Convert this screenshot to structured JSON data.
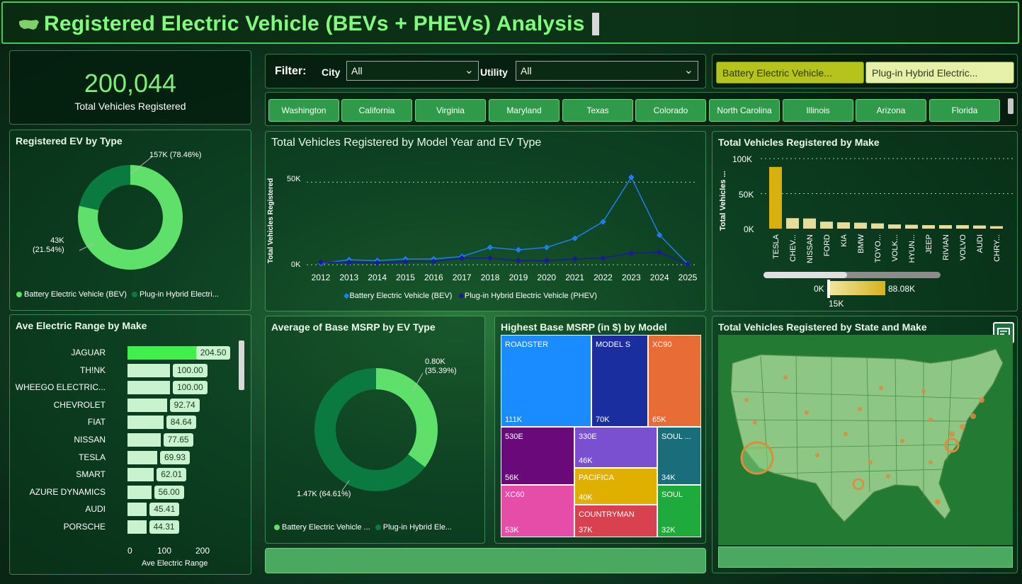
{
  "header": {
    "title": "Registered Electric Vehicle (BEVs + PHEVs) Analysis"
  },
  "kpi": {
    "value": "200,044",
    "label": "Total Vehicles Registered"
  },
  "filters": {
    "label": "Filter:",
    "city_label": "City",
    "city_value": "All",
    "utility_label": "Utility",
    "utility_value": "All"
  },
  "ev_type_buttons": [
    "Battery Electric Vehicle...",
    "Plug-in Hybrid Electric..."
  ],
  "states": [
    "Washington",
    "California",
    "Virginia",
    "Maryland",
    "Texas",
    "Colorado",
    "North Carolina",
    "Illinois",
    "Arizona",
    "Florida"
  ],
  "ev_by_type": {
    "title": "Registered EV by Type",
    "bev_label": "157K (78.46%)",
    "phev_label": "43K\n(21.54%)",
    "legend_bev": "Battery Electric Vehicle (BEV)",
    "legend_phev": "Plug-in Hybrid Electri..."
  },
  "range_by_make": {
    "title": "Ave Electric Range by Make",
    "xlabel": "Ave Electric Range",
    "xticks": [
      "0",
      "100",
      "200"
    ]
  },
  "msrp_by_type": {
    "title": "Average of Base MSRP by EV Type",
    "phev_label": "0.80K\n(35.39%)",
    "bev_label": "1.47K (64.61%)",
    "legend_bev": "Battery Electric Vehicle ...",
    "legend_phev": "Plug-in Hybrid Ele..."
  },
  "treemap": {
    "title": "Highest Base MSRP (in $) by Model",
    "cells": [
      {
        "name": "ROADSTER",
        "value": "111K",
        "color": "#1a8cff"
      },
      {
        "name": "MODEL S",
        "value": "70K",
        "color": "#1b2ea0"
      },
      {
        "name": "XC90",
        "value": "65K",
        "color": "#e86c35"
      },
      {
        "name": "530E",
        "value": "56K",
        "color": "#6a0a7a"
      },
      {
        "name": "330E",
        "value": "46K",
        "color": "#7a4fd0"
      },
      {
        "name": "SOUL ...",
        "value": "34K",
        "color": "#1a6d7a"
      },
      {
        "name": "XC60",
        "value": "53K",
        "color": "#e64da8"
      },
      {
        "name": "PACIFICA",
        "value": "40K",
        "color": "#e0b000"
      },
      {
        "name": "SOUL",
        "value": "32K",
        "color": "#1eaa3c"
      },
      {
        "name": "COUNTRYMAN",
        "value": "37K",
        "color": "#d94050"
      }
    ]
  },
  "map": {
    "title": "Total Vehicles Registered by State and Make"
  },
  "make_chart": {
    "title": "Total Vehicles Registered by Make",
    "ylabel": "Total Vehicles ...",
    "yticks": [
      "100K",
      "50K",
      "0K"
    ],
    "slider_min": "0K",
    "slider_max": "88.08K",
    "slider_mid": "15K"
  },
  "chart_data": [
    {
      "type": "line",
      "title": "Total Vehicles Registered by Model Year and EV Type",
      "ylabel": "Total Vehicles Registered",
      "xlabel": "",
      "ylim": [
        0,
        60000
      ],
      "yticks": [
        "50K",
        "0K"
      ],
      "x": [
        "2012",
        "2013",
        "2014",
        "2015",
        "2016",
        "2017",
        "2018",
        "2019",
        "2020",
        "2021",
        "2022",
        "2023",
        "2024",
        "2025"
      ],
      "series": [
        {
          "name": "Battery Electric Vehicle (BEV)",
          "values": [
            800,
            3000,
            2500,
            3500,
            3500,
            5000,
            10500,
            9000,
            10500,
            16000,
            26000,
            53000,
            18000,
            500
          ],
          "color": "#1e7ef0"
        },
        {
          "name": "Plug-in Hybrid Electric Vehicle (PHEV)",
          "values": [
            1500,
            1500,
            1200,
            1800,
            2000,
            4000,
            4000,
            2500,
            2500,
            3500,
            4000,
            7000,
            7500,
            300
          ],
          "color": "#1a1a9a"
        }
      ]
    },
    {
      "type": "bar",
      "title": "Total Vehicles Registered by Make",
      "categories": [
        "TESLA",
        "CHEV...",
        "NISSAN",
        "FORD",
        "KIA",
        "BMW",
        "TOYO...",
        "VOLK...",
        "HYUN...",
        "JEEP",
        "RIVIAN",
        "VOLVO",
        "AUDI",
        "CHRY..."
      ],
      "values": [
        88080,
        15000,
        14500,
        10000,
        9000,
        8500,
        7500,
        6000,
        5500,
        5000,
        5000,
        5000,
        4500,
        3500
      ],
      "ylim": [
        0,
        100000
      ]
    },
    {
      "type": "bar",
      "title": "Ave Electric Range by Make",
      "categories": [
        "JAGUAR",
        "TH!NK",
        "WHEEGO ELECTRIC...",
        "CHEVROLET",
        "FIAT",
        "NISSAN",
        "TESLA",
        "SMART",
        "AZURE DYNAMICS",
        "AUDI",
        "PORSCHE"
      ],
      "values": [
        204.5,
        100.0,
        100.0,
        92.74,
        84.64,
        77.65,
        69.93,
        62.01,
        56.0,
        45.41,
        44.31
      ],
      "labels": [
        "204.50",
        "100.00",
        "100.00",
        "92.74",
        "84.64",
        "77.65",
        "69.93",
        "62.01",
        "56.00",
        "45.41",
        "44.31"
      ],
      "xlim": [
        0,
        230
      ]
    },
    {
      "type": "pie",
      "title": "Registered EV by Type",
      "categories": [
        "Battery Electric Vehicle (BEV)",
        "Plug-in Hybrid Electric Vehicle (PHEV)"
      ],
      "values": [
        78.46,
        21.54
      ]
    },
    {
      "type": "pie",
      "title": "Average of Base MSRP by EV Type",
      "categories": [
        "Battery Electric Vehicle",
        "Plug-in Hybrid Electric Vehicle"
      ],
      "values": [
        64.61,
        35.39
      ]
    }
  ]
}
